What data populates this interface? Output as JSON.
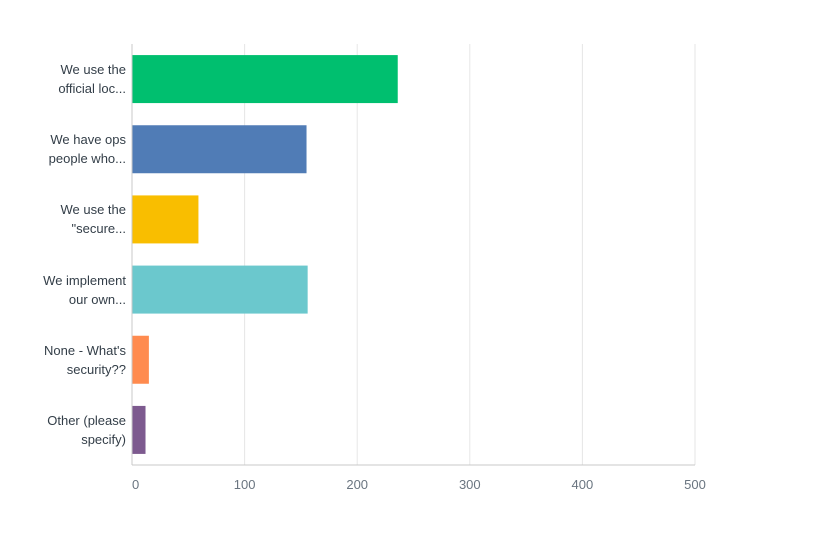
{
  "chart_data": {
    "type": "bar",
    "orientation": "horizontal",
    "categories": [
      [
        "We use the",
        "official loc..."
      ],
      [
        "We have ops",
        "people who..."
      ],
      [
        "We use the",
        "\"secure..."
      ],
      [
        "We implement",
        "our own..."
      ],
      [
        "None - What's",
        "security??"
      ],
      [
        "Other (please",
        "specify)"
      ]
    ],
    "values": [
      236,
      155,
      59,
      156,
      15,
      12
    ],
    "colors": [
      "#00bf6f",
      "#507cb6",
      "#f9be00",
      "#6bc8cd",
      "#ff8b4f",
      "#7d5a8f"
    ],
    "xlim": [
      0,
      500
    ],
    "xticks": [
      0,
      100,
      200,
      300,
      400,
      500
    ],
    "grid": true,
    "title": "",
    "xlabel": "",
    "ylabel": ""
  }
}
